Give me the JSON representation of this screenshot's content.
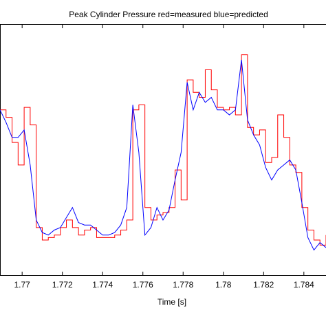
{
  "chart_data": {
    "type": "line",
    "title": "Peak Cylinder Pressure red=measured blue=predicted",
    "x_label": "Time [s]",
    "x": [
      1.7689,
      1.7692,
      1.7695,
      1.7698,
      1.7701,
      1.7704,
      1.7707,
      1.771,
      1.7713,
      1.7716,
      1.7719,
      1.7722,
      1.7725,
      1.7728,
      1.7731,
      1.7734,
      1.7737,
      1.774,
      1.7743,
      1.7746,
      1.7749,
      1.7752,
      1.7755,
      1.7758,
      1.7761,
      1.7764,
      1.7767,
      1.777,
      1.7773,
      1.7776,
      1.7779,
      1.7782,
      1.7785,
      1.7788,
      1.7791,
      1.7794,
      1.7797,
      1.78,
      1.7803,
      1.7806,
      1.7809,
      1.7812,
      1.7815,
      1.7818,
      1.7821,
      1.7824,
      1.7827,
      1.783,
      1.7833,
      1.7836,
      1.7839,
      1.7842,
      1.7845,
      1.7848,
      1.7851
    ],
    "series": [
      {
        "name": "measured",
        "color": "#ff0000",
        "step": true,
        "values": [
          66,
          63,
          53,
          44,
          67,
          60,
          19,
          14,
          15,
          16,
          19,
          22,
          19,
          16,
          18,
          19,
          15,
          15,
          15,
          16,
          18,
          22,
          66,
          68,
          27,
          22,
          24,
          25,
          27,
          42,
          30,
          78,
          73,
          71,
          82,
          74,
          67,
          66,
          67,
          64,
          88,
          59,
          56,
          58,
          45,
          47,
          64,
          55,
          44,
          41,
          27,
          18,
          14,
          12,
          16
        ]
      },
      {
        "name": "predicted",
        "color": "#0000ff",
        "step": false,
        "values": [
          66,
          61,
          55,
          55,
          58,
          44,
          22,
          17,
          16,
          18,
          19,
          23,
          27,
          21,
          20,
          20,
          18,
          16,
          16,
          17,
          20,
          27,
          68,
          49,
          16,
          19,
          27,
          22,
          26,
          38,
          49,
          77,
          66,
          73,
          69,
          71,
          66,
          66,
          64,
          66,
          86,
          62,
          56,
          52,
          43,
          38,
          42,
          44,
          46,
          42,
          29,
          15,
          10,
          13,
          11
        ]
      }
    ],
    "xlim": [
      1.7689,
      1.7851
    ],
    "xticks": [
      1.77,
      1.772,
      1.774,
      1.776,
      1.778,
      1.78,
      1.782,
      1.784
    ],
    "ylim": [
      0,
      100
    ]
  }
}
